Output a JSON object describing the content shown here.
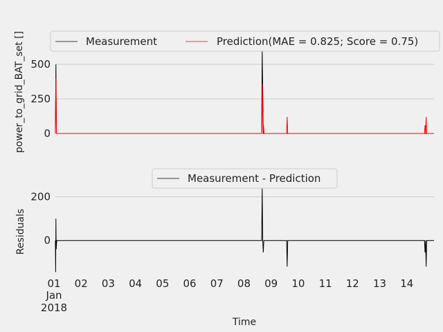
{
  "chart_data": [
    {
      "type": "line",
      "ylabel": "power_to_grid_BAT_set []",
      "xlabel": "",
      "ylim": [
        -10,
        600
      ],
      "yticks": [
        0,
        250,
        500
      ],
      "ytick_labels": [
        "0",
        "250",
        "500"
      ],
      "grid": true,
      "legend_placement": "top",
      "legend_layout": "horizontal",
      "series": [
        {
          "name": "Measurement",
          "color": "#000000",
          "points": [
            [
              1.0,
              0
            ],
            [
              1.02,
              500
            ],
            [
              1.04,
              0
            ],
            [
              8.6,
              0
            ],
            [
              8.62,
              600
            ],
            [
              8.66,
              0
            ],
            [
              14.7,
              0
            ],
            [
              14.95,
              0
            ]
          ]
        },
        {
          "name": "Prediction(MAE = 0.825; Score = 0.75)",
          "color": "#ff0000",
          "points": [
            [
              1.0,
              0
            ],
            [
              1.02,
              400
            ],
            [
              1.04,
              0
            ],
            [
              8.6,
              0
            ],
            [
              8.63,
              360
            ],
            [
              8.65,
              0
            ],
            [
              8.67,
              60
            ],
            [
              8.69,
              0
            ],
            [
              9.52,
              0
            ],
            [
              9.54,
              120
            ],
            [
              9.56,
              0
            ],
            [
              14.6,
              0
            ],
            [
              14.62,
              60
            ],
            [
              14.64,
              0
            ],
            [
              14.66,
              120
            ],
            [
              14.68,
              0
            ],
            [
              14.95,
              0
            ]
          ]
        }
      ]
    },
    {
      "type": "line",
      "ylabel": "Residuals",
      "xlabel": "Time",
      "ylim": [
        -150,
        240
      ],
      "yticks": [
        0,
        200
      ],
      "ytick_labels": [
        "0",
        "200"
      ],
      "grid": true,
      "legend_placement": "top",
      "x_ticks": [
        1,
        2,
        3,
        4,
        5,
        6,
        7,
        8,
        9,
        10,
        11,
        12,
        13,
        14
      ],
      "x_tick_labels": [
        "01",
        "02",
        "03",
        "04",
        "05",
        "06",
        "07",
        "08",
        "09",
        "10",
        "11",
        "12",
        "13",
        "14"
      ],
      "x_month_label": "Jan",
      "x_year_label": "2018",
      "series": [
        {
          "name": "Measurement - Prediction",
          "color": "#000000",
          "points": [
            [
              1.0,
              0
            ],
            [
              1.01,
              -145
            ],
            [
              1.02,
              100
            ],
            [
              1.03,
              -40
            ],
            [
              1.05,
              0
            ],
            [
              8.6,
              0
            ],
            [
              8.62,
              240
            ],
            [
              8.64,
              0
            ],
            [
              8.66,
              -55
            ],
            [
              8.68,
              0
            ],
            [
              9.52,
              0
            ],
            [
              9.54,
              -120
            ],
            [
              9.56,
              0
            ],
            [
              14.6,
              0
            ],
            [
              14.62,
              -55
            ],
            [
              14.64,
              0
            ],
            [
              14.66,
              -120
            ],
            [
              14.68,
              0
            ],
            [
              14.95,
              0
            ]
          ]
        }
      ]
    }
  ]
}
